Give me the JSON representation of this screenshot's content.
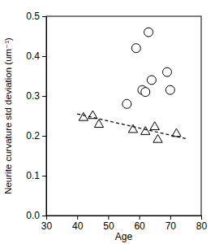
{
  "chart_data": {
    "type": "scatter",
    "x_label": "Age",
    "y_label": "Neurite curvature std deviation (um⁻¹)",
    "xlim": [
      30,
      80
    ],
    "xticks": [
      30,
      40,
      50,
      60,
      70,
      80
    ],
    "ylim": [
      0,
      0.5
    ],
    "yticks": [
      {
        "value": 0,
        "label": "0.0"
      },
      0.1,
      0.2,
      0.3,
      0.4,
      0.5
    ],
    "series": [
      {
        "type": "scatter",
        "marker": "circle",
        "color": "#000000",
        "x": [
          56,
          59,
          61,
          62,
          63,
          64,
          69,
          70
        ],
        "values": [
          0.28,
          0.42,
          0.315,
          0.31,
          0.46,
          0.34,
          0.36,
          0.315
        ]
      },
      {
        "type": "scatter",
        "marker": "triangle",
        "color": "#000000",
        "x": [
          42,
          45,
          47,
          58,
          62,
          65,
          66,
          72
        ],
        "values": [
          0.245,
          0.25,
          0.228,
          0.215,
          0.21,
          0.222,
          0.19,
          0.205
        ]
      },
      {
        "type": "line",
        "line_style": "dashed",
        "color": "#000000",
        "x": [
          40,
          75
        ],
        "values": [
          0.255,
          0.193
        ]
      }
    ]
  }
}
